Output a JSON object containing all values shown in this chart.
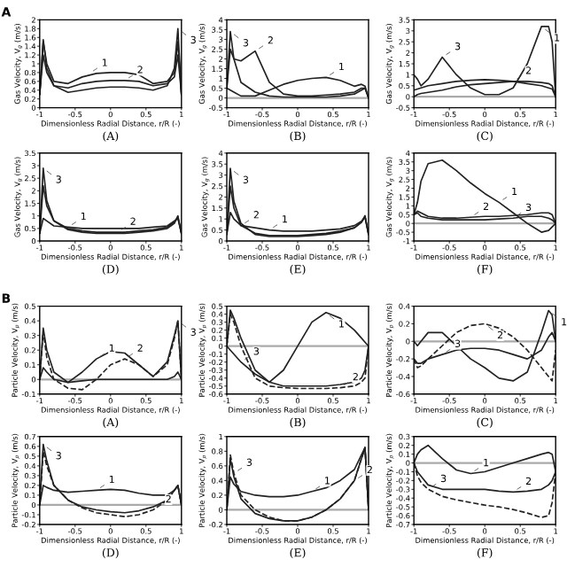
{
  "chart_data": [
    {
      "type": "line",
      "title": "A",
      "xlabel": "Dimensionless Radial Distance, r/R (-)",
      "ylabel": "Gas Velocity, V$_{g}$ (m/s)",
      "annotations": [
        "(A)",
        {
          "text": "1",
          "x": -0.3,
          "y": 0.78
        },
        {
          "text": "2",
          "x": 0.2,
          "y": 0.62
        },
        {
          "text": "3",
          "x": 0.95,
          "y": 1.8
        }
      ],
      "x": [
        -1,
        -0.95,
        -0.9,
        -0.8,
        -0.6,
        -0.4,
        -0.2,
        0,
        0.2,
        0.4,
        0.6,
        0.8,
        0.9,
        0.95,
        1
      ],
      "xlim": [
        -1,
        1
      ],
      "xticks": [
        -1,
        -0.5,
        0,
        0.5,
        1
      ],
      "ylim": [
        0,
        2
      ],
      "yticks": [
        0,
        0.2,
        0.4,
        0.6,
        0.8,
        1,
        1.2,
        1.4,
        1.6,
        1.8,
        2
      ],
      "grid": false,
      "legend": false,
      "series": [
        {
          "color": "#222222",
          "values": [
            0.3,
            1.5,
            1.0,
            0.6,
            0.55,
            0.7,
            0.78,
            0.8,
            0.8,
            0.75,
            0.55,
            0.6,
            0.8,
            1.5,
            0.3
          ]
        },
        {
          "color": "#222222",
          "values": [
            0.3,
            1.2,
            0.8,
            0.5,
            0.45,
            0.55,
            0.6,
            0.62,
            0.62,
            0.6,
            0.5,
            0.55,
            0.7,
            1.2,
            0.3
          ]
        },
        {
          "color": "#222222",
          "values": [
            0.3,
            1.55,
            0.9,
            0.5,
            0.35,
            0.4,
            0.45,
            0.47,
            0.47,
            0.45,
            0.4,
            0.5,
            0.9,
            1.8,
            0.3
          ]
        }
      ]
    },
    {
      "type": "line",
      "xlabel": "Dimensionless Radial Distance, r/R (-)",
      "ylabel": "Gas Velocity, V$_{g}$ (m/s)",
      "annotations": [
        "(B)",
        {
          "text": "1",
          "x": 0.4,
          "y": 1.05
        },
        {
          "text": "2",
          "x": -0.6,
          "y": 2.4
        },
        {
          "text": "3",
          "x": -0.95,
          "y": 3.4
        }
      ],
      "x": [
        -1,
        -0.95,
        -0.9,
        -0.8,
        -0.6,
        -0.4,
        -0.2,
        0,
        0.2,
        0.4,
        0.6,
        0.8,
        0.9,
        0.95,
        1
      ],
      "xlim": [
        -1,
        1
      ],
      "xticks": [
        -1,
        -0.5,
        0,
        0.5,
        1
      ],
      "ylim": [
        -0.5,
        4
      ],
      "yticks": [
        -0.5,
        0,
        0.5,
        1,
        1.5,
        2,
        2.5,
        3,
        3.5,
        4
      ],
      "ref_lines": [
        {
          "axis": "y",
          "value": 0,
          "color": "#aaaaaa"
        }
      ],
      "series": [
        {
          "color": "#222222",
          "values": [
            0.5,
            0.4,
            0.3,
            0.1,
            0.1,
            0.4,
            0.7,
            0.9,
            1.0,
            1.05,
            0.9,
            0.6,
            0.7,
            0.6,
            0.0
          ]
        },
        {
          "color": "#222222",
          "values": [
            0.5,
            2.5,
            2.0,
            1.9,
            2.4,
            0.8,
            0.2,
            0.1,
            0.1,
            0.15,
            0.2,
            0.3,
            0.5,
            0.5,
            0.0
          ]
        },
        {
          "color": "#222222",
          "values": [
            0.5,
            3.4,
            2.0,
            0.8,
            0.3,
            0.1,
            0.05,
            0.05,
            0.05,
            0.05,
            0.1,
            0.2,
            0.4,
            0.5,
            0.0
          ]
        }
      ]
    },
    {
      "type": "line",
      "xlabel": "Dimensionless Radial Distance, r/R (-)",
      "ylabel": "Gas Velocity, V$_{g}$ (m/s)",
      "annotations": [
        "(C)",
        {
          "text": "1",
          "x": 0.8,
          "y": 3.2
        },
        {
          "text": "2",
          "x": 0.4,
          "y": 0.7
        },
        {
          "text": "3",
          "x": -0.6,
          "y": 1.8
        }
      ],
      "x": [
        -1,
        -0.95,
        -0.9,
        -0.8,
        -0.6,
        -0.4,
        -0.2,
        0,
        0.2,
        0.4,
        0.6,
        0.8,
        0.9,
        0.95,
        1
      ],
      "xlim": [
        -1,
        1
      ],
      "xticks": [
        -1,
        -0.5,
        0,
        0.5,
        1
      ],
      "ylim": [
        -0.5,
        3.5
      ],
      "yticks": [
        -0.5,
        0,
        0.5,
        1,
        1.5,
        2,
        2.5,
        3,
        3.5
      ],
      "ref_lines": [
        {
          "axis": "y",
          "value": 0,
          "color": "#aaaaaa"
        }
      ],
      "series": [
        {
          "color": "#222222",
          "values": [
            1.0,
            0.8,
            0.5,
            0.8,
            1.8,
            1.0,
            0.4,
            0.1,
            0.1,
            0.4,
            1.5,
            3.2,
            3.2,
            2.5,
            0.0
          ]
        },
        {
          "color": "#222222",
          "values": [
            0.3,
            0.35,
            0.4,
            0.5,
            0.6,
            0.7,
            0.75,
            0.78,
            0.75,
            0.7,
            0.6,
            0.5,
            0.4,
            0.35,
            0.0
          ]
        },
        {
          "color": "#222222",
          "values": [
            0.0,
            0.1,
            0.15,
            0.2,
            0.3,
            0.45,
            0.55,
            0.6,
            0.65,
            0.7,
            0.7,
            0.65,
            0.6,
            0.5,
            0.0
          ]
        }
      ]
    },
    {
      "type": "line",
      "xlabel": "Dimensionless Radial Distance, r/R (-)",
      "ylabel": "Gas Velocity, V$_{g}$ (m/s)",
      "annotations": [
        "(D)",
        {
          "text": "1",
          "x": -0.6,
          "y": 0.55
        },
        {
          "text": "2",
          "x": 0.1,
          "y": 0.35
        },
        {
          "text": "3",
          "x": -0.95,
          "y": 2.9
        }
      ],
      "x": [
        -1,
        -0.95,
        -0.9,
        -0.8,
        -0.6,
        -0.4,
        -0.2,
        0,
        0.2,
        0.4,
        0.6,
        0.8,
        0.9,
        0.95,
        1
      ],
      "xlim": [
        -1,
        1
      ],
      "xticks": [
        -1,
        -0.5,
        0,
        0.5,
        1
      ],
      "ylim": [
        0,
        3.5
      ],
      "yticks": [
        0,
        0.5,
        1,
        1.5,
        2,
        2.5,
        3,
        3.5
      ],
      "series": [
        {
          "color": "#222222",
          "values": [
            0.3,
            0.9,
            0.8,
            0.6,
            0.55,
            0.5,
            0.5,
            0.5,
            0.5,
            0.5,
            0.55,
            0.6,
            0.8,
            0.9,
            0.3
          ]
        },
        {
          "color": "#222222",
          "values": [
            0.3,
            2.2,
            1.4,
            0.8,
            0.5,
            0.4,
            0.35,
            0.35,
            0.35,
            0.4,
            0.45,
            0.55,
            0.75,
            0.95,
            0.3
          ]
        },
        {
          "color": "#222222",
          "values": [
            0.3,
            2.9,
            1.6,
            0.8,
            0.45,
            0.35,
            0.3,
            0.3,
            0.3,
            0.35,
            0.4,
            0.5,
            0.7,
            1.0,
            0.3
          ]
        }
      ]
    },
    {
      "type": "line",
      "xlabel": "Dimensionless Radial Distance, r/R (-)",
      "ylabel": "Gas Velocity, V$_{g}$ (m/s)",
      "annotations": [
        "(E)",
        {
          "text": "1",
          "x": -0.4,
          "y": 0.5
        },
        {
          "text": "2",
          "x": -0.8,
          "y": 0.7
        },
        {
          "text": "3",
          "x": -0.95,
          "y": 3.3
        }
      ],
      "x": [
        -1,
        -0.95,
        -0.9,
        -0.8,
        -0.6,
        -0.4,
        -0.2,
        0,
        0.2,
        0.4,
        0.6,
        0.8,
        0.9,
        0.95,
        1
      ],
      "xlim": [
        -1,
        1
      ],
      "xticks": [
        -1,
        -0.5,
        0,
        0.5,
        1
      ],
      "ylim": [
        0,
        4
      ],
      "yticks": [
        0,
        0.5,
        1,
        1.5,
        2,
        2.5,
        3,
        3.5,
        4
      ],
      "series": [
        {
          "color": "#222222",
          "values": [
            0.3,
            1.3,
            1.0,
            0.7,
            0.6,
            0.5,
            0.45,
            0.45,
            0.45,
            0.5,
            0.55,
            0.7,
            0.9,
            1.1,
            0.3
          ]
        },
        {
          "color": "#222222",
          "values": [
            0.3,
            2.5,
            1.5,
            0.7,
            0.35,
            0.25,
            0.25,
            0.25,
            0.3,
            0.35,
            0.45,
            0.6,
            0.85,
            1.1,
            0.3
          ]
        },
        {
          "color": "#222222",
          "values": [
            0.3,
            3.3,
            1.8,
            0.8,
            0.3,
            0.2,
            0.2,
            0.2,
            0.25,
            0.3,
            0.4,
            0.6,
            0.85,
            1.15,
            0.3
          ]
        }
      ]
    },
    {
      "type": "line",
      "xlabel": "Dimensionless Radial Distance, r/R (-)",
      "ylabel": "Gas Velocity, V$_{g}$ (m/s)",
      "annotations": [
        "(F)",
        {
          "text": "1",
          "x": 0.2,
          "y": 1.2
        },
        {
          "text": "2",
          "x": -0.2,
          "y": 0.35
        },
        {
          "text": "3",
          "x": 0.4,
          "y": 0.3
        }
      ],
      "x": [
        -1,
        -0.95,
        -0.9,
        -0.8,
        -0.6,
        -0.4,
        -0.2,
        0,
        0.2,
        0.4,
        0.6,
        0.8,
        0.9,
        0.95,
        1
      ],
      "xlim": [
        -1,
        1
      ],
      "xticks": [
        -1,
        -0.5,
        0,
        0.5,
        1
      ],
      "ylim": [
        -1,
        4
      ],
      "yticks": [
        -1,
        -0.5,
        0,
        0.5,
        1,
        1.5,
        2,
        2.5,
        3,
        3.5,
        4
      ],
      "ref_lines": [
        {
          "axis": "y",
          "value": 0,
          "color": "#aaaaaa"
        }
      ],
      "series": [
        {
          "color": "#222222",
          "values": [
            0.5,
            1.2,
            2.4,
            3.4,
            3.6,
            3.0,
            2.3,
            1.7,
            1.2,
            0.6,
            0.0,
            -0.5,
            -0.4,
            -0.2,
            0.0
          ]
        },
        {
          "color": "#222222",
          "values": [
            0.5,
            0.7,
            0.6,
            0.4,
            0.3,
            0.3,
            0.35,
            0.4,
            0.4,
            0.45,
            0.5,
            0.6,
            0.6,
            0.5,
            0.0
          ]
        },
        {
          "color": "#222222",
          "values": [
            0.5,
            0.6,
            0.4,
            0.3,
            0.2,
            0.2,
            0.2,
            0.2,
            0.25,
            0.3,
            0.4,
            0.4,
            0.3,
            0.2,
            0.0
          ]
        }
      ]
    },
    {
      "type": "line",
      "title": "B",
      "xlabel": "Dimensionless Radial Distance, r/R (-)",
      "ylabel": "Particle Velocity, V$_{p}$ (m/s)",
      "annotations": [
        "(A)",
        {
          "text": "1",
          "x": -0.2,
          "y": 0.14
        },
        {
          "text": "2",
          "x": 0.2,
          "y": 0.14
        },
        {
          "text": "3",
          "x": 0.95,
          "y": 0.4
        }
      ],
      "x": [
        -1,
        -0.95,
        -0.9,
        -0.8,
        -0.6,
        -0.4,
        -0.2,
        0,
        0.2,
        0.4,
        0.6,
        0.8,
        0.9,
        0.95,
        1
      ],
      "xlim": [
        -1,
        1
      ],
      "xticks": [
        -1,
        -0.5,
        0,
        0.5,
        1
      ],
      "ylim": [
        -0.1,
        0.5
      ],
      "yticks": [
        -0.1,
        0,
        0.1,
        0.2,
        0.3,
        0.4,
        0.5
      ],
      "ref_lines": [
        {
          "axis": "y",
          "value": 0,
          "color": "#aaaaaa"
        }
      ],
      "series": [
        {
          "color": "#222222",
          "line_style": "solid",
          "values": [
            0.0,
            0.35,
            0.2,
            0.05,
            -0.02,
            0.05,
            0.14,
            0.19,
            0.18,
            0.1,
            0.02,
            0.12,
            0.3,
            0.4,
            0.0
          ]
        },
        {
          "color": "#222222",
          "line_style": "dashed",
          "values": [
            0.0,
            0.33,
            0.15,
            0.0,
            -0.06,
            -0.07,
            0.0,
            0.1,
            0.14,
            0.1,
            0.02,
            0.1,
            0.28,
            0.4,
            0.0
          ]
        },
        {
          "color": "#222222",
          "line_style": "solid",
          "values": [
            0.0,
            0.08,
            0.05,
            0.0,
            -0.02,
            -0.01,
            0.0,
            0.0,
            0.0,
            0.0,
            0.0,
            0.0,
            0.02,
            0.05,
            0.0
          ]
        }
      ]
    },
    {
      "type": "line",
      "xlabel": "Dimensionless Radial Distance, r/R (-)",
      "ylabel": "Particle Velocity, V$_{p}$ (m/s)",
      "annotations": [
        "(B)",
        {
          "text": "1",
          "x": 0.4,
          "y": 0.42
        },
        {
          "text": "2",
          "x": 0.6,
          "y": -0.52
        },
        {
          "text": "3",
          "x": -0.8,
          "y": -0.2
        }
      ],
      "x": [
        -1,
        -0.95,
        -0.9,
        -0.8,
        -0.6,
        -0.4,
        -0.2,
        0,
        0.2,
        0.4,
        0.6,
        0.8,
        0.9,
        0.95,
        1
      ],
      "xlim": [
        -1,
        1
      ],
      "xticks": [
        -1,
        -0.5,
        0,
        0.5,
        1
      ],
      "ylim": [
        -0.6,
        0.5
      ],
      "yticks": [
        -0.6,
        -0.5,
        -0.4,
        -0.3,
        -0.2,
        -0.1,
        0,
        0.1,
        0.2,
        0.3,
        0.4,
        0.5
      ],
      "ref_lines": [
        {
          "axis": "y",
          "value": 0,
          "color": "#aaaaaa"
        }
      ],
      "series": [
        {
          "color": "#222222",
          "line_style": "solid",
          "values": [
            0.0,
            0.45,
            0.35,
            0.1,
            -0.3,
            -0.45,
            -0.3,
            0.0,
            0.3,
            0.42,
            0.35,
            0.2,
            0.1,
            0.05,
            0.0
          ]
        },
        {
          "color": "#222222",
          "line_style": "dashed",
          "values": [
            0.0,
            0.4,
            0.3,
            0.0,
            -0.4,
            -0.5,
            -0.52,
            -0.53,
            -0.53,
            -0.53,
            -0.52,
            -0.5,
            -0.45,
            -0.4,
            0.0
          ]
        },
        {
          "color": "#222222",
          "line_style": "solid",
          "values": [
            0.0,
            -0.05,
            -0.1,
            -0.2,
            -0.35,
            -0.45,
            -0.5,
            -0.5,
            -0.5,
            -0.5,
            -0.48,
            -0.45,
            -0.4,
            -0.3,
            0.0
          ]
        }
      ]
    },
    {
      "type": "line",
      "xlabel": "Dimensionless Radial Distance, r/R (-)",
      "ylabel": "Particle Velocity, V$_{p}$ (m/s)",
      "annotations": [
        "(C)",
        {
          "text": "1",
          "x": 0.9,
          "y": 0.35
        },
        {
          "text": "2",
          "x": 0,
          "y": 0.2
        },
        {
          "text": "3",
          "x": -0.6,
          "y": -0.15
        }
      ],
      "x": [
        -1,
        -0.95,
        -0.9,
        -0.8,
        -0.6,
        -0.4,
        -0.2,
        0,
        0.2,
        0.4,
        0.6,
        0.8,
        0.9,
        0.95,
        1
      ],
      "xlim": [
        -1,
        1
      ],
      "xticks": [
        -1,
        -0.5,
        0,
        0.5,
        1
      ],
      "ylim": [
        -0.6,
        0.4
      ],
      "yticks": [
        -0.6,
        -0.4,
        -0.2,
        0,
        0.2,
        0.4
      ],
      "ref_lines": [
        {
          "axis": "y",
          "value": 0,
          "color": "#aaaaaa"
        }
      ],
      "series": [
        {
          "color": "#222222",
          "line_style": "solid",
          "values": [
            0.0,
            -0.05,
            0.0,
            0.1,
            0.1,
            -0.05,
            -0.2,
            -0.3,
            -0.42,
            -0.45,
            -0.35,
            0.1,
            0.35,
            0.3,
            0.0
          ]
        },
        {
          "color": "#222222",
          "line_style": "dashed",
          "values": [
            -0.2,
            -0.3,
            -0.28,
            -0.2,
            -0.05,
            0.1,
            0.18,
            0.2,
            0.15,
            0.05,
            -0.1,
            -0.3,
            -0.4,
            -0.45,
            -0.1
          ]
        },
        {
          "color": "#222222",
          "line_style": "solid",
          "values": [
            -0.2,
            -0.25,
            -0.25,
            -0.2,
            -0.15,
            -0.1,
            -0.08,
            -0.08,
            -0.1,
            -0.15,
            -0.2,
            -0.1,
            0.05,
            0.1,
            0.0
          ]
        }
      ]
    },
    {
      "type": "line",
      "xlabel": "Dimensionless Radial Distance, r/R (-)",
      "ylabel": "Particle Velocity, V$_{p}$ (m/s)",
      "annotations": [
        "(D)",
        {
          "text": "1",
          "x": -0.2,
          "y": 0.15
        },
        {
          "text": "2",
          "x": 0.6,
          "y": -0.05
        },
        {
          "text": "3",
          "x": -0.95,
          "y": 0.62
        }
      ],
      "x": [
        -1,
        -0.95,
        -0.9,
        -0.8,
        -0.6,
        -0.4,
        -0.2,
        0,
        0.2,
        0.4,
        0.6,
        0.8,
        0.9,
        0.95,
        1
      ],
      "xlim": [
        -1,
        1
      ],
      "xticks": [
        -1,
        -0.5,
        0,
        0.5,
        1
      ],
      "ylim": [
        -0.2,
        0.7
      ],
      "yticks": [
        -0.2,
        -0.1,
        0,
        0.1,
        0.2,
        0.3,
        0.4,
        0.5,
        0.6,
        0.7
      ],
      "ref_lines": [
        {
          "axis": "y",
          "value": 0,
          "color": "#aaaaaa"
        }
      ],
      "series": [
        {
          "color": "#222222",
          "line_style": "solid",
          "values": [
            0.0,
            0.2,
            0.18,
            0.15,
            0.13,
            0.14,
            0.15,
            0.16,
            0.15,
            0.12,
            0.1,
            0.1,
            0.15,
            0.2,
            0.0
          ]
        },
        {
          "color": "#222222",
          "line_style": "dashed",
          "values": [
            0.0,
            0.55,
            0.4,
            0.2,
            0.05,
            -0.03,
            -0.08,
            -0.1,
            -0.12,
            -0.1,
            -0.05,
            0.05,
            0.15,
            0.2,
            0.0
          ]
        },
        {
          "color": "#222222",
          "line_style": "solid",
          "values": [
            0.0,
            0.62,
            0.45,
            0.2,
            0.05,
            -0.02,
            -0.05,
            -0.07,
            -0.08,
            -0.06,
            -0.02,
            0.05,
            0.15,
            0.2,
            0.0
          ]
        }
      ]
    },
    {
      "type": "line",
      "xlabel": "Dimensionless Radial Distance, r/R (-)",
      "ylabel": "Particle Velocity, V$_{p}$ (m/s)",
      "annotations": [
        "(E)",
        {
          "text": "1",
          "x": 0.2,
          "y": 0.25
        },
        {
          "text": "2",
          "x": 0.8,
          "y": 0.4
        },
        {
          "text": "3",
          "x": -0.9,
          "y": 0.5
        }
      ],
      "x": [
        -1,
        -0.95,
        -0.9,
        -0.8,
        -0.6,
        -0.4,
        -0.2,
        0,
        0.2,
        0.4,
        0.6,
        0.8,
        0.9,
        0.95,
        1
      ],
      "xlim": [
        -1,
        1
      ],
      "xticks": [
        -1,
        -0.5,
        0,
        0.5,
        1
      ],
      "ylim": [
        -0.2,
        1
      ],
      "yticks": [
        -0.2,
        0,
        0.2,
        0.4,
        0.6,
        0.8,
        1
      ],
      "ref_lines": [
        {
          "axis": "y",
          "value": 0,
          "color": "#aaaaaa"
        }
      ],
      "series": [
        {
          "color": "#222222",
          "line_style": "solid",
          "values": [
            0.0,
            0.45,
            0.35,
            0.25,
            0.2,
            0.18,
            0.18,
            0.2,
            0.25,
            0.3,
            0.4,
            0.55,
            0.75,
            0.85,
            0.0
          ]
        },
        {
          "color": "#222222",
          "line_style": "dashed",
          "values": [
            0.0,
            0.75,
            0.5,
            0.2,
            0.0,
            -0.1,
            -0.15,
            -0.15,
            -0.1,
            0.0,
            0.15,
            0.4,
            0.7,
            0.85,
            0.0
          ]
        },
        {
          "color": "#222222",
          "line_style": "solid",
          "values": [
            0.0,
            0.7,
            0.45,
            0.15,
            -0.05,
            -0.12,
            -0.15,
            -0.15,
            -0.1,
            0.0,
            0.15,
            0.4,
            0.7,
            0.85,
            0.0
          ]
        }
      ]
    },
    {
      "type": "line",
      "xlabel": "Dimensionless Radial Distance, r/R (-)",
      "ylabel": "Particle Velocity, V$_{p}$ (m/s)",
      "annotations": [
        "(F)",
        {
          "text": "1",
          "x": -0.2,
          "y": -0.12
        },
        {
          "text": "2",
          "x": 0.4,
          "y": -0.33
        },
        {
          "text": "3",
          "x": -0.8,
          "y": -0.3
        }
      ],
      "x": [
        -1,
        -0.95,
        -0.9,
        -0.8,
        -0.6,
        -0.4,
        -0.2,
        0,
        0.2,
        0.4,
        0.6,
        0.8,
        0.9,
        0.95,
        1
      ],
      "xlim": [
        -1,
        1
      ],
      "xticks": [
        -1,
        -0.5,
        0,
        0.5,
        1
      ],
      "ylim": [
        -0.7,
        0.3
      ],
      "yticks": [
        -0.7,
        -0.6,
        -0.5,
        -0.4,
        -0.3,
        -0.2,
        -0.1,
        0,
        0.1,
        0.2,
        0.3
      ],
      "ref_lines": [
        {
          "axis": "y",
          "value": 0,
          "color": "#aaaaaa"
        }
      ],
      "series": [
        {
          "color": "#222222",
          "line_style": "solid",
          "values": [
            0.0,
            0.1,
            0.15,
            0.2,
            0.05,
            -0.08,
            -0.12,
            -0.1,
            -0.05,
            0.0,
            0.05,
            0.1,
            0.12,
            0.1,
            -0.1
          ]
        },
        {
          "color": "#222222",
          "line_style": "solid",
          "values": [
            0.0,
            -0.1,
            -0.15,
            -0.25,
            -0.3,
            -0.3,
            -0.3,
            -0.3,
            -0.32,
            -0.33,
            -0.32,
            -0.3,
            -0.25,
            -0.2,
            -0.1
          ]
        },
        {
          "color": "#222222",
          "line_style": "dashed",
          "values": [
            0.0,
            -0.15,
            -0.22,
            -0.3,
            -0.38,
            -0.42,
            -0.45,
            -0.48,
            -0.5,
            -0.53,
            -0.57,
            -0.62,
            -0.6,
            -0.45,
            -0.1
          ]
        }
      ]
    }
  ]
}
